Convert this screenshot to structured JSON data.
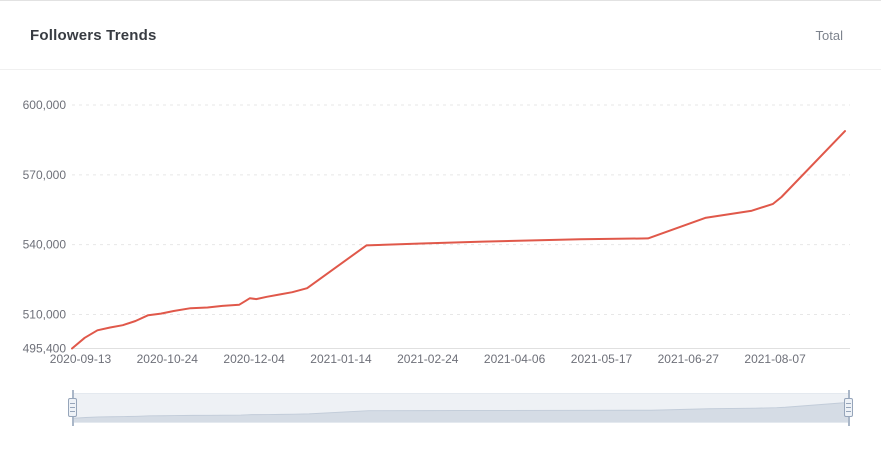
{
  "header": {
    "title": "Followers Trends",
    "legend_label": "Total"
  },
  "chart_data": {
    "type": "line",
    "title": "Followers Trends",
    "legend": [
      "Total"
    ],
    "legend_position": "top-right",
    "grid": "horizontal dotted gridlines",
    "x_axis": {
      "type": "time",
      "range": [
        "2020-09-09",
        "2021-09-09"
      ],
      "tick_labels": [
        "2020-09-13",
        "2020-10-24",
        "2020-12-04",
        "2021-01-14",
        "2021-02-24",
        "2021-04-06",
        "2021-05-17",
        "2021-06-27",
        "2021-08-07"
      ]
    },
    "y_axis": {
      "min": 495400,
      "max": 600000,
      "ticks": [
        {
          "value": 495400,
          "label": "495,400"
        },
        {
          "value": 510000,
          "label": "510,000"
        },
        {
          "value": 540000,
          "label": "540,000"
        },
        {
          "value": 570000,
          "label": "570,000"
        },
        {
          "value": 600000,
          "label": "600,000"
        }
      ]
    },
    "series": [
      {
        "name": "Total",
        "color": "#e0584a",
        "points": [
          [
            "2020-09-09",
            495400
          ],
          [
            "2020-09-15",
            500000
          ],
          [
            "2020-09-21",
            503200
          ],
          [
            "2020-09-27",
            504400
          ],
          [
            "2020-10-03",
            505400
          ],
          [
            "2020-10-09",
            507200
          ],
          [
            "2020-10-15",
            509700
          ],
          [
            "2020-10-21",
            510400
          ],
          [
            "2020-10-27",
            511500
          ],
          [
            "2020-11-04",
            512700
          ],
          [
            "2020-11-12",
            513000
          ],
          [
            "2020-11-19",
            513700
          ],
          [
            "2020-11-27",
            514200
          ],
          [
            "2020-11-30",
            515900
          ],
          [
            "2020-12-02",
            517000
          ],
          [
            "2020-12-05",
            516600
          ],
          [
            "2020-12-10",
            517600
          ],
          [
            "2020-12-16",
            518600
          ],
          [
            "2020-12-22",
            519600
          ],
          [
            "2020-12-29",
            521300
          ],
          [
            "2021-01-26",
            539700
          ],
          [
            "2021-02-21",
            540500
          ],
          [
            "2021-03-22",
            541300
          ],
          [
            "2021-05-07",
            542300
          ],
          [
            "2021-06-08",
            542700
          ],
          [
            "2021-07-05",
            551500
          ],
          [
            "2021-07-27",
            554600
          ],
          [
            "2021-08-06",
            557500
          ],
          [
            "2021-08-10",
            560500
          ],
          [
            "2021-09-09",
            588800
          ]
        ]
      }
    ],
    "datazoom": {
      "selected_range": "full",
      "background": "#eef1f5",
      "shadow_fill": "#d5dce5",
      "shadow_line": "#c2ccd9"
    }
  }
}
